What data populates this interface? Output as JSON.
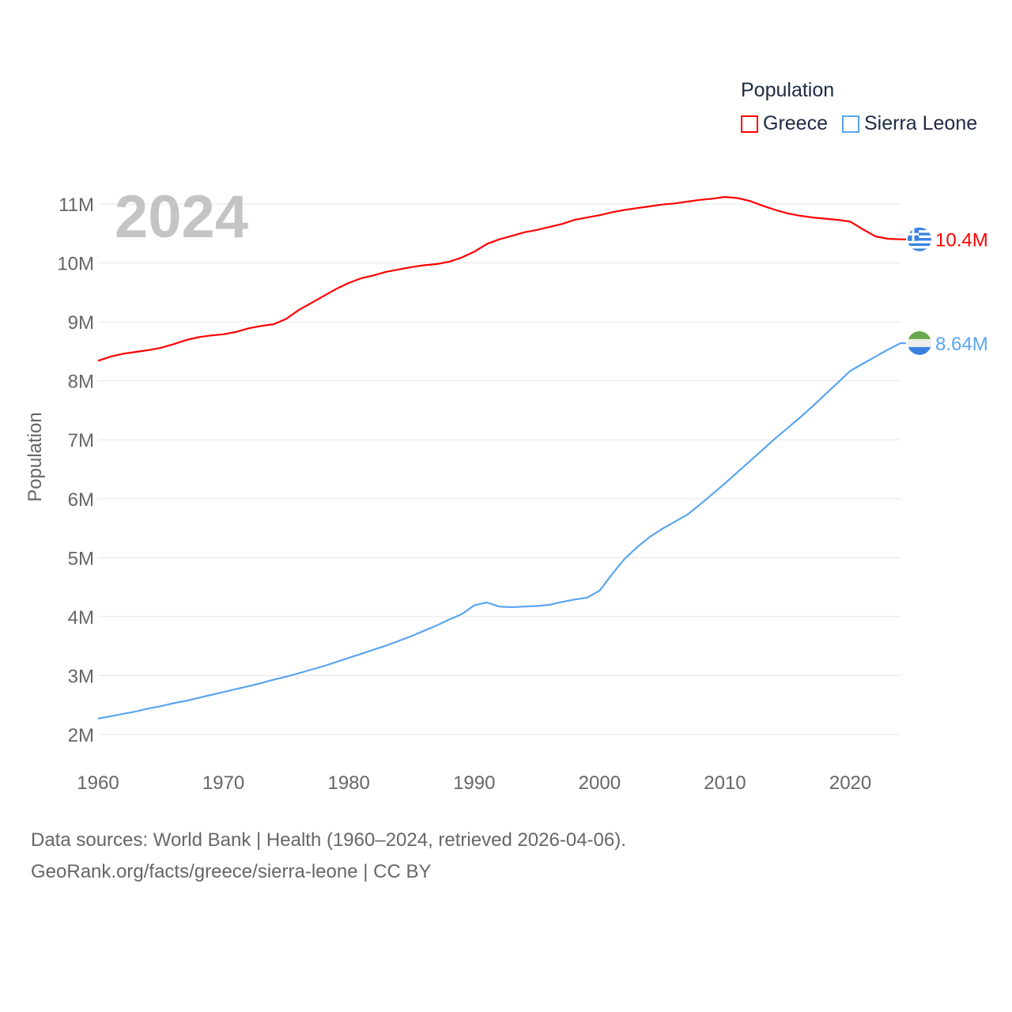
{
  "chart_data": {
    "type": "line",
    "title": "Population",
    "year_label": "2024",
    "ylabel": "Population",
    "xlabel": "",
    "xlim": [
      1960,
      2024
    ],
    "ylim": [
      2,
      11
    ],
    "x_ticks": [
      "1960",
      "1970",
      "1980",
      "1990",
      "2000",
      "2010",
      "2020"
    ],
    "y_ticks": [
      "2M",
      "3M",
      "4M",
      "5M",
      "6M",
      "7M",
      "8M",
      "9M",
      "10M",
      "11M"
    ],
    "grid": true,
    "legend_position": "top-right",
    "x": [
      1960,
      1961,
      1962,
      1963,
      1964,
      1965,
      1966,
      1967,
      1968,
      1969,
      1970,
      1971,
      1972,
      1973,
      1974,
      1975,
      1976,
      1977,
      1978,
      1979,
      1980,
      1981,
      1982,
      1983,
      1984,
      1985,
      1986,
      1987,
      1988,
      1989,
      1990,
      1991,
      1992,
      1993,
      1994,
      1995,
      1996,
      1997,
      1998,
      1999,
      2000,
      2001,
      2002,
      2003,
      2004,
      2005,
      2006,
      2007,
      2008,
      2009,
      2010,
      2011,
      2012,
      2013,
      2014,
      2015,
      2016,
      2017,
      2018,
      2019,
      2020,
      2021,
      2022,
      2023,
      2024
    ],
    "series": [
      {
        "name": "Greece",
        "color": "#ff0000",
        "end_label": "10.4M",
        "values": [
          8.34,
          8.41,
          8.46,
          8.49,
          8.52,
          8.56,
          8.62,
          8.69,
          8.74,
          8.77,
          8.79,
          8.83,
          8.89,
          8.93,
          8.96,
          9.05,
          9.2,
          9.32,
          9.44,
          9.56,
          9.66,
          9.74,
          9.79,
          9.85,
          9.89,
          9.93,
          9.96,
          9.98,
          10.02,
          10.09,
          10.19,
          10.32,
          10.4,
          10.46,
          10.52,
          10.56,
          10.61,
          10.66,
          10.73,
          10.77,
          10.81,
          10.86,
          10.9,
          10.93,
          10.96,
          10.99,
          11.01,
          11.04,
          11.07,
          11.09,
          11.12,
          11.1,
          11.05,
          10.97,
          10.9,
          10.84,
          10.8,
          10.77,
          10.75,
          10.73,
          10.7,
          10.57,
          10.45,
          10.41,
          10.4
        ]
      },
      {
        "name": "Sierra Leone",
        "color": "#5aa5ef",
        "end_label": "8.64M",
        "values": [
          2.27,
          2.31,
          2.35,
          2.39,
          2.44,
          2.48,
          2.53,
          2.57,
          2.62,
          2.67,
          2.72,
          2.77,
          2.82,
          2.87,
          2.93,
          2.98,
          3.04,
          3.1,
          3.16,
          3.23,
          3.3,
          3.37,
          3.44,
          3.51,
          3.59,
          3.67,
          3.76,
          3.85,
          3.95,
          4.04,
          4.19,
          4.24,
          4.17,
          4.16,
          4.17,
          4.18,
          4.2,
          4.25,
          4.29,
          4.32,
          4.44,
          4.72,
          4.98,
          5.18,
          5.35,
          5.49,
          5.61,
          5.73,
          5.9,
          6.08,
          6.26,
          6.45,
          6.64,
          6.83,
          7.02,
          7.2,
          7.38,
          7.57,
          7.77,
          7.97,
          8.17,
          8.29,
          8.41,
          8.53,
          8.64
        ]
      }
    ]
  },
  "footer": {
    "line1": "Data sources: World Bank | Health (1960–2024, retrieved 2026-04-06).",
    "line2": "GeoRank.org/facts/greece/sierra-leone | CC BY"
  }
}
